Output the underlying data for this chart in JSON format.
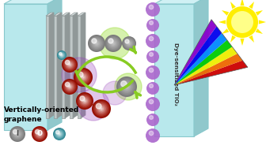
{
  "bg_color": "#ffffff",
  "panel_color": "#b8e8ec",
  "panel_edge": "#88c8cc",
  "panel_top_color": "#d0f0f4",
  "panel_side_color": "#90c8cc",
  "graphene_color": "#c0c8c8",
  "graphene_edge": "#909898",
  "title_left": "Vertically-oriented\ngraphene",
  "right_label": "Dye-sensitized TiO₂",
  "sun_color": "#ffee00",
  "sun_ray_color": "#ffee00",
  "purple_color": "#aa66cc",
  "green_arrow_color": "#88cc22",
  "red_sphere_color": "#cc1100",
  "gray_sphere_color": "#aaaaaa",
  "cyan_sphere_color": "#44bbcc",
  "purple_glow": "#9944bb",
  "green_glow": "#99dd33",
  "rainbow_colors": [
    "#cc0000",
    "#ee6600",
    "#eeee00",
    "#00cc00",
    "#0088ff",
    "#0000ee",
    "#8800cc"
  ],
  "figw": 3.36,
  "figh": 1.89,
  "dpi": 100
}
